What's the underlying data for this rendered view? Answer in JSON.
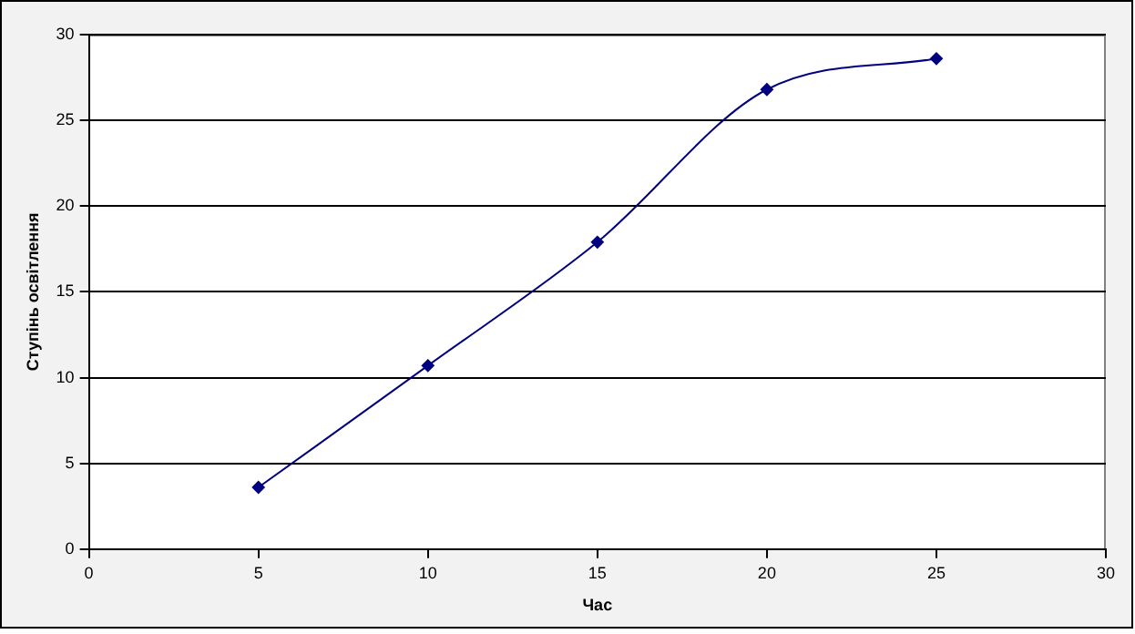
{
  "chart_data": {
    "type": "line",
    "xlabel": "Час",
    "ylabel": "Ступінь освітлення",
    "x": [
      5,
      10,
      15,
      20,
      25
    ],
    "series": [
      {
        "color": "#000080",
        "values": [
          3.6,
          10.7,
          17.9,
          26.8,
          28.6
        ]
      }
    ],
    "xlim": [
      0,
      30
    ],
    "xticks": [
      0,
      5,
      10,
      15,
      20,
      25,
      30
    ],
    "ylim": [
      0,
      30
    ],
    "yticks": [
      0,
      5,
      10,
      15,
      20,
      25,
      30
    ],
    "grid": "y",
    "legend": false,
    "marker": "diamond",
    "line_style": "solid"
  }
}
